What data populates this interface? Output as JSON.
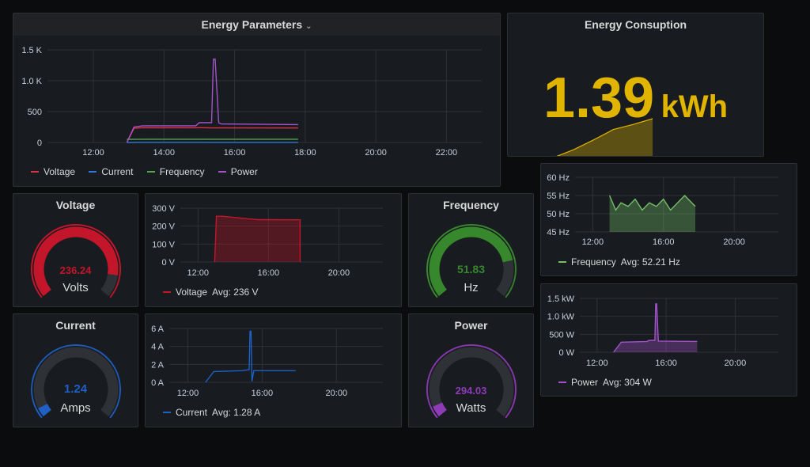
{
  "energy_parameters": {
    "title": "Energy Parameters",
    "legend": [
      {
        "label": "Voltage",
        "color": "#e02f44"
      },
      {
        "label": "Current",
        "color": "#3274d9"
      },
      {
        "label": "Frequency",
        "color": "#56a64b"
      },
      {
        "label": "Power",
        "color": "#a352cc"
      }
    ]
  },
  "energy_consumption": {
    "title": "Energy Consuption",
    "value": "1.39",
    "unit": "kWh",
    "color": "#e0b400"
  },
  "voltage_gauge": {
    "title": "Voltage",
    "value": "236.24",
    "unit": "Volts",
    "color": "#c4162a",
    "fraction": 0.88
  },
  "current_gauge": {
    "title": "Current",
    "value": "1.24",
    "unit": "Amps",
    "color": "#1f60c4",
    "fraction": 0.05
  },
  "frequency_gauge": {
    "title": "Frequency",
    "value": "51.83",
    "unit": "Hz",
    "color": "#37872d",
    "fraction": 0.8
  },
  "power_gauge": {
    "title": "Power",
    "value": "294.03",
    "unit": "Watts",
    "color": "#8f3bb8",
    "fraction": 0.06
  },
  "voltage_graph": {
    "legend": "Voltage",
    "avg": "Avg: 236 V",
    "color": "#c4162a"
  },
  "current_graph": {
    "legend": "Current",
    "avg": "Avg: 1.28 A",
    "color": "#1f60c4"
  },
  "frequency_graph": {
    "legend": "Frequency",
    "avg": "Avg: 52.21 Hz",
    "color": "#73bf69"
  },
  "power_graph": {
    "legend": "Power",
    "avg": "Avg: 304 W",
    "color": "#a352cc"
  },
  "chart_data": [
    {
      "type": "line",
      "name": "energy-parameters",
      "title": "Energy Parameters",
      "x_ticks": [
        "12:00",
        "14:00",
        "16:00",
        "18:00",
        "20:00",
        "22:00"
      ],
      "y_ticks": [
        "0",
        "500",
        "1.0 K",
        "1.5 K"
      ],
      "xlim": [
        10.7,
        23.0
      ],
      "ylim": [
        0,
        1500
      ],
      "grid": true,
      "legend_position": "bottom-left",
      "series": [
        {
          "name": "Voltage",
          "color": "#e02f44",
          "x": [
            12.95,
            13.15,
            13.4,
            14.9,
            15.0,
            15.35,
            15.5,
            17.8
          ],
          "y": [
            0,
            230,
            240,
            238,
            240,
            236,
            236,
            235
          ]
        },
        {
          "name": "Current",
          "color": "#3274d9",
          "x": [
            12.95,
            13.4,
            14.9,
            15.35,
            15.55,
            17.8
          ],
          "y": [
            0,
            2,
            2,
            1.3,
            1.3,
            1.3
          ]
        },
        {
          "name": "Frequency",
          "color": "#56a64b",
          "x": [
            12.95,
            13.4,
            17.8
          ],
          "y": [
            50,
            52,
            52
          ]
        },
        {
          "name": "Power",
          "color": "#a352cc",
          "x": [
            12.95,
            13.15,
            13.4,
            14.9,
            15.0,
            15.35,
            15.4,
            15.45,
            15.55,
            15.62,
            17.8
          ],
          "y": [
            0,
            250,
            270,
            270,
            320,
            320,
            1350,
            1350,
            320,
            300,
            290
          ]
        }
      ]
    },
    {
      "type": "area",
      "name": "energy-consumption-sparkline",
      "x": [
        0,
        0.2,
        0.4,
        0.55,
        0.6,
        0.8,
        1.0
      ],
      "y": [
        0,
        0.2,
        0.45,
        0.65,
        0.72,
        0.85,
        1.0
      ]
    },
    {
      "type": "area",
      "name": "voltage-graph",
      "x_ticks": [
        "12:00",
        "16:00",
        "20:00"
      ],
      "y_ticks": [
        "0 V",
        "100 V",
        "200 V",
        "300 V"
      ],
      "xlim": [
        11.0,
        22.5
      ],
      "ylim": [
        0,
        300
      ],
      "grid": true,
      "series": [
        {
          "name": "Voltage",
          "color": "#c4162a",
          "x": [
            12.95,
            13.05,
            13.4,
            14.9,
            15.0,
            15.35,
            15.5,
            17.8,
            17.8
          ],
          "y": [
            0,
            255,
            255,
            240,
            240,
            236,
            236,
            235,
            0
          ]
        }
      ]
    },
    {
      "type": "line",
      "name": "current-graph",
      "x_ticks": [
        "12:00",
        "16:00",
        "20:00"
      ],
      "y_ticks": [
        "0 A",
        "2 A",
        "4 A",
        "6 A"
      ],
      "xlim": [
        11.0,
        22.5
      ],
      "ylim": [
        0,
        6
      ],
      "grid": true,
      "series": [
        {
          "name": "Current",
          "color": "#1f60c4",
          "x": [
            12.95,
            13.4,
            14.9,
            15.3,
            15.35,
            15.4,
            15.45,
            15.55,
            17.8
          ],
          "y": [
            0,
            1.2,
            1.3,
            1.4,
            5.7,
            5.7,
            0.1,
            1.3,
            1.3
          ]
        }
      ]
    },
    {
      "type": "line",
      "name": "frequency-graph",
      "x_ticks": [
        "12:00",
        "16:00",
        "20:00"
      ],
      "y_ticks": [
        "45 Hz",
        "50 Hz",
        "55 Hz",
        "60 Hz"
      ],
      "xlim": [
        11.0,
        22.5
      ],
      "ylim": [
        45,
        60
      ],
      "grid": true,
      "series": [
        {
          "name": "Frequency",
          "color": "#73bf69",
          "x": [
            12.95,
            13.3,
            13.6,
            14.0,
            14.4,
            14.8,
            15.2,
            15.6,
            16.0,
            16.4,
            16.8,
            17.2,
            17.8
          ],
          "y": [
            55,
            51,
            53,
            52,
            54,
            51,
            53,
            52,
            54,
            51,
            53,
            55,
            52
          ]
        }
      ]
    },
    {
      "type": "line",
      "name": "power-graph",
      "x_ticks": [
        "12:00",
        "16:00",
        "20:00"
      ],
      "y_ticks": [
        "0 W",
        "500 W",
        "1.0 kW",
        "1.5 kW"
      ],
      "xlim": [
        11.0,
        22.5
      ],
      "ylim": [
        0,
        1500
      ],
      "grid": true,
      "series": [
        {
          "name": "Power",
          "color": "#a352cc",
          "x": [
            12.95,
            13.4,
            14.9,
            15.0,
            15.35,
            15.4,
            15.45,
            15.55,
            17.8
          ],
          "y": [
            0,
            280,
            300,
            330,
            330,
            1350,
            1350,
            310,
            300
          ]
        }
      ]
    }
  ]
}
